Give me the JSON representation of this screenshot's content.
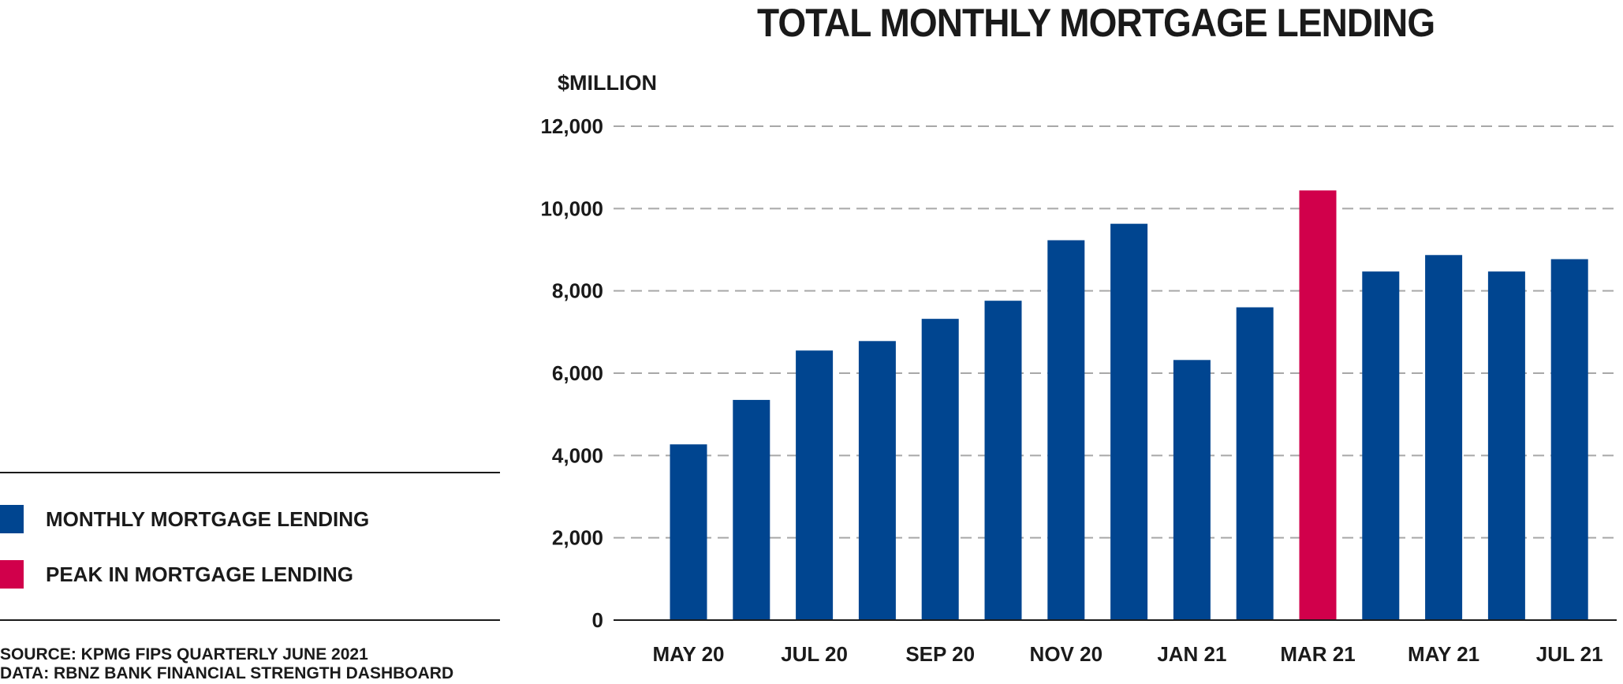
{
  "chart_data": {
    "type": "bar",
    "title": "TOTAL MONTHLY MORTGAGE LENDING",
    "ylabel": "$MILLION",
    "xlabel": "",
    "ylim": [
      0,
      12000
    ],
    "yticks": [
      0,
      2000,
      4000,
      6000,
      8000,
      10000,
      12000
    ],
    "ytick_labels": [
      "0",
      "2,000",
      "4,000",
      "6,000",
      "8,000",
      "10,000",
      "12,000"
    ],
    "grid": true,
    "categories": [
      "MAY 20",
      "JUN 20",
      "JUL 20",
      "AUG 20",
      "SEP 20",
      "OCT 20",
      "NOV 20",
      "DEC 20",
      "JAN 21",
      "FEB 21",
      "MAR 21",
      "APR 21",
      "MAY 21",
      "JUN 21",
      "JUL 21"
    ],
    "xtick_labels": [
      "MAY 20",
      "",
      "JUL 20",
      "",
      "SEP 20",
      "",
      "NOV 20",
      "",
      "JAN 21",
      "",
      "MAR 21",
      "",
      "MAY 21",
      "",
      "JUL 21"
    ],
    "values": [
      4270,
      5350,
      6550,
      6780,
      7320,
      7760,
      9230,
      9630,
      6320,
      7600,
      10440,
      8470,
      8870,
      8470,
      8770
    ],
    "highlight": [
      false,
      false,
      false,
      false,
      false,
      false,
      false,
      false,
      false,
      false,
      true,
      false,
      false,
      false,
      false
    ],
    "colors": {
      "normal": "#004590",
      "peak": "#d1004b",
      "grid": "#a8a8a8",
      "axis": "#1a1a1a"
    },
    "legend": [
      {
        "label": "MONTHLY MORTGAGE LENDING",
        "color": "#004590"
      },
      {
        "label": "PEAK IN MORTGAGE LENDING",
        "color": "#d1004b"
      }
    ],
    "legend_placement": "left"
  },
  "source": {
    "line1": "SOURCE: KPMG FIPS QUARTERLY JUNE 2021",
    "line2": "DATA: RBNZ BANK FINANCIAL STRENGTH DASHBOARD"
  }
}
